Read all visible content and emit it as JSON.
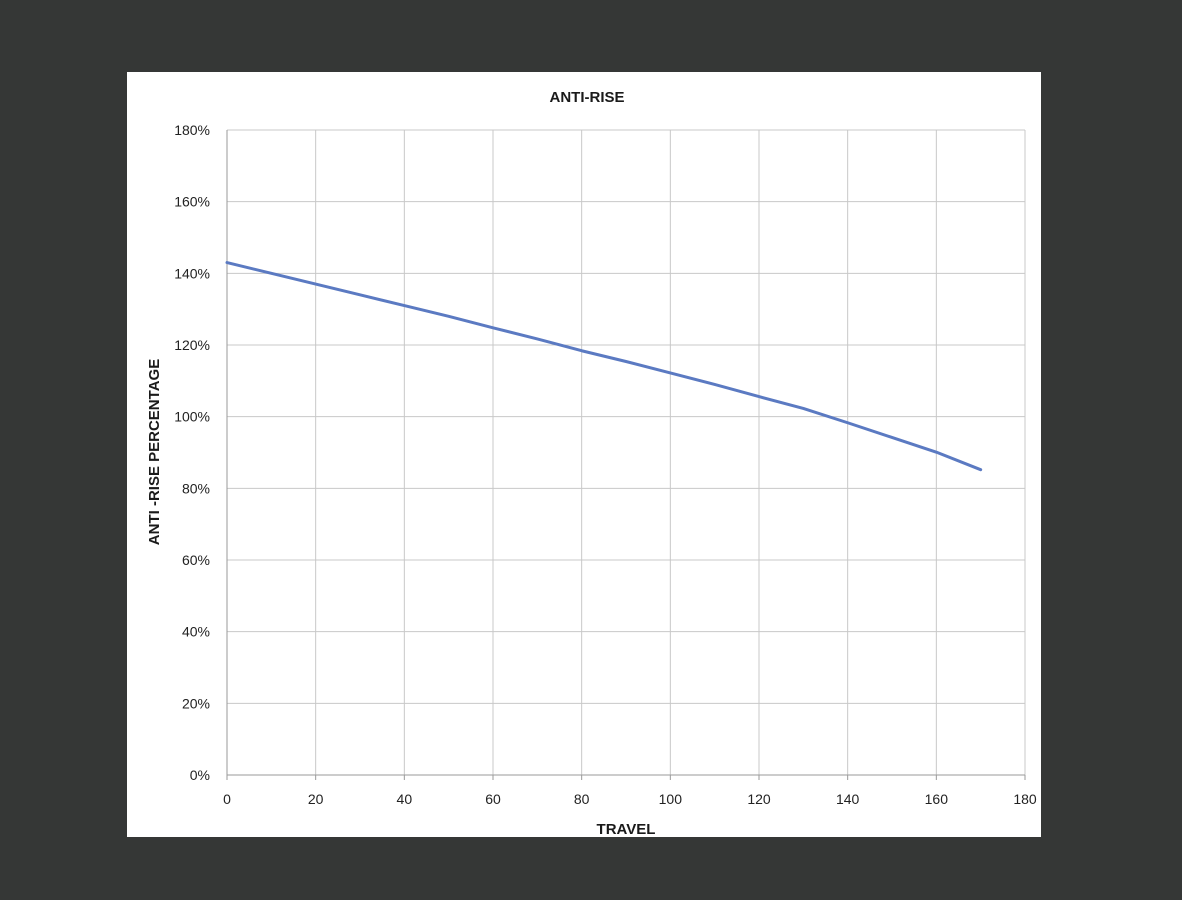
{
  "chart_data": {
    "type": "line",
    "title": "ANTI-RISE",
    "xlabel": "TRAVEL",
    "ylabel": "ANTI -RISE PERCENTAGE",
    "xlim": [
      0,
      180
    ],
    "ylim": [
      0,
      180
    ],
    "x_ticks": [
      "0",
      "20",
      "40",
      "60",
      "80",
      "100",
      "120",
      "140",
      "160",
      "180"
    ],
    "y_ticks": [
      "0%",
      "20%",
      "40%",
      "60%",
      "80%",
      "100%",
      "120%",
      "140%",
      "160%",
      "180%"
    ],
    "grid": true,
    "legend": "none",
    "series": [
      {
        "color": "#5b7ac2",
        "x": [
          0,
          10,
          20,
          30,
          40,
          50,
          60,
          70,
          80,
          90,
          100,
          110,
          120,
          130,
          140,
          150,
          160,
          170
        ],
        "y": [
          143,
          140,
          137,
          134,
          131,
          128,
          124.8,
          121.7,
          118.4,
          115.4,
          112.2,
          109,
          105.6,
          102.3,
          98.3,
          94.2,
          90.1,
          85.2
        ]
      }
    ]
  },
  "colors": {
    "background": "#353736",
    "panel": "#ffffff",
    "grid": "#c8c8c8",
    "axis": "#9a9a9a",
    "line": "#5b7ac2"
  }
}
